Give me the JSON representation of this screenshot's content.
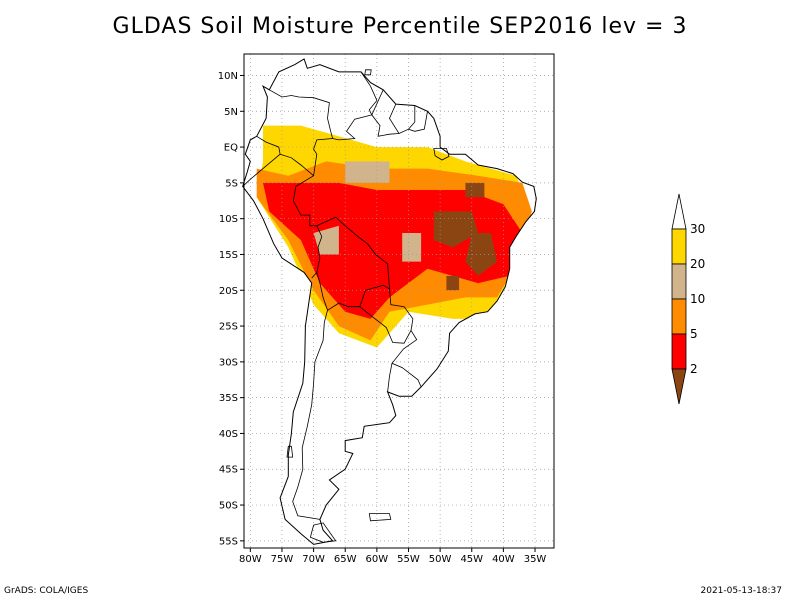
{
  "title": "GLDAS Soil Moisture Percentile SEP2016 lev = 3",
  "footer": {
    "left": "GrADS: COLA/IGES",
    "right": "2021-05-13-18:37"
  },
  "map": {
    "lat_range": [
      -56,
      13
    ],
    "lon_range": [
      -81,
      -32
    ],
    "lat_ticks": [
      {
        "v": 10,
        "label": "10N"
      },
      {
        "v": 5,
        "label": "5N"
      },
      {
        "v": 0,
        "label": "EQ"
      },
      {
        "v": -5,
        "label": "5S"
      },
      {
        "v": -10,
        "label": "10S"
      },
      {
        "v": -15,
        "label": "15S"
      },
      {
        "v": -20,
        "label": "20S"
      },
      {
        "v": -25,
        "label": "25S"
      },
      {
        "v": -30,
        "label": "30S"
      },
      {
        "v": -35,
        "label": "35S"
      },
      {
        "v": -40,
        "label": "40S"
      },
      {
        "v": -45,
        "label": "45S"
      },
      {
        "v": -50,
        "label": "50S"
      },
      {
        "v": -55,
        "label": "55S"
      }
    ],
    "lon_ticks": [
      {
        "v": -80,
        "label": "80W"
      },
      {
        "v": -75,
        "label": "75W"
      },
      {
        "v": -70,
        "label": "70W"
      },
      {
        "v": -65,
        "label": "65W"
      },
      {
        "v": -60,
        "label": "60W"
      },
      {
        "v": -55,
        "label": "55W"
      },
      {
        "v": -50,
        "label": "50W"
      },
      {
        "v": -45,
        "label": "45W"
      },
      {
        "v": -40,
        "label": "40W"
      },
      {
        "v": -35,
        "label": "35W"
      }
    ],
    "grid": true,
    "coastline": [
      [
        -78,
        8.5
      ],
      [
        -77,
        8
      ],
      [
        -75.5,
        10.5
      ],
      [
        -73,
        11.5
      ],
      [
        -71.5,
        12.3
      ],
      [
        -71,
        11
      ],
      [
        -69,
        11.5
      ],
      [
        -66,
        10.5
      ],
      [
        -62.5,
        10.5
      ],
      [
        -61,
        9
      ],
      [
        -59,
        8
      ],
      [
        -57,
        6
      ],
      [
        -54,
        5.8
      ],
      [
        -52,
        5
      ],
      [
        -51,
        4
      ],
      [
        -50,
        1.5
      ],
      [
        -50,
        0
      ],
      [
        -48.5,
        -1
      ],
      [
        -46,
        -1
      ],
      [
        -44,
        -2.5
      ],
      [
        -41,
        -3
      ],
      [
        -38.5,
        -3.7
      ],
      [
        -37,
        -4.9
      ],
      [
        -35.2,
        -5.5
      ],
      [
        -34.8,
        -7.2
      ],
      [
        -35.1,
        -9
      ],
      [
        -36.5,
        -10.5
      ],
      [
        -38,
        -12.5
      ],
      [
        -39,
        -14
      ],
      [
        -39,
        -17
      ],
      [
        -39.7,
        -19.5
      ],
      [
        -41,
        -21.5
      ],
      [
        -42.5,
        -23
      ],
      [
        -44.5,
        -23.3
      ],
      [
        -47,
        -24.5
      ],
      [
        -48.5,
        -26
      ],
      [
        -48.7,
        -28.5
      ],
      [
        -50.5,
        -31
      ],
      [
        -53,
        -33.5
      ],
      [
        -54.5,
        -34.8
      ],
      [
        -56.5,
        -34.8
      ],
      [
        -58.3,
        -34.2
      ],
      [
        -57.5,
        -36
      ],
      [
        -57,
        -37.5
      ],
      [
        -58,
        -38.5
      ],
      [
        -62,
        -39
      ],
      [
        -62.3,
        -40.6
      ],
      [
        -65,
        -41
      ],
      [
        -65,
        -42.5
      ],
      [
        -63.8,
        -42.8
      ],
      [
        -65,
        -45
      ],
      [
        -67.5,
        -46.5
      ],
      [
        -66,
        -47.8
      ],
      [
        -68,
        -50
      ],
      [
        -69,
        -52
      ],
      [
        -68.5,
        -53.5
      ],
      [
        -67,
        -55
      ],
      [
        -70,
        -55.5
      ],
      [
        -72,
        -54
      ],
      [
        -74.5,
        -52
      ],
      [
        -75.3,
        -49
      ],
      [
        -74,
        -46
      ],
      [
        -74,
        -43
      ],
      [
        -73.5,
        -40
      ],
      [
        -73.2,
        -37
      ],
      [
        -71.7,
        -33
      ],
      [
        -71.4,
        -30
      ],
      [
        -71.3,
        -25
      ],
      [
        -70.3,
        -19
      ],
      [
        -71.5,
        -17.5
      ],
      [
        -75,
        -15.5
      ],
      [
        -76.3,
        -13.5
      ],
      [
        -78,
        -10
      ],
      [
        -79.5,
        -7.5
      ],
      [
        -81.2,
        -5.5
      ],
      [
        -80.5,
        -3.5
      ],
      [
        -80,
        -2
      ],
      [
        -80.8,
        -1
      ],
      [
        -80,
        1
      ],
      [
        -79,
        1.5
      ],
      [
        -77.5,
        4
      ],
      [
        -77.3,
        7
      ],
      [
        -78,
        8.5
      ]
    ],
    "borders": [
      [
        [
          -77,
          8
        ],
        [
          -75,
          7
        ],
        [
          -73.5,
          7.2
        ],
        [
          -72.3,
          7
        ],
        [
          -70,
          6.9
        ],
        [
          -67.5,
          6.2
        ],
        [
          -67.8,
          4
        ],
        [
          -67.3,
          2.2
        ],
        [
          -67,
          1.2
        ],
        [
          -69.5,
          1
        ],
        [
          -70,
          -0.3
        ],
        [
          -69.5,
          -1
        ],
        [
          -70,
          -4
        ]
      ],
      [
        [
          -62.5,
          10.5
        ],
        [
          -61,
          8.5
        ],
        [
          -60,
          6.5
        ],
        [
          -61.2,
          5.2
        ],
        [
          -60.8,
          4.5
        ],
        [
          -63.5,
          3.9
        ],
        [
          -64.8,
          2.2
        ],
        [
          -63.5,
          1.2
        ],
        [
          -66,
          1
        ],
        [
          -67,
          1.2
        ]
      ],
      [
        [
          -59,
          8
        ],
        [
          -60.8,
          4.5
        ],
        [
          -59.5,
          3
        ],
        [
          -59.8,
          1.5
        ],
        [
          -58,
          1.8
        ],
        [
          -56.5,
          1.9
        ]
      ],
      [
        [
          -57,
          6
        ],
        [
          -58,
          4
        ],
        [
          -56.5,
          1.9
        ],
        [
          -55,
          2.5
        ],
        [
          -54,
          3.5
        ],
        [
          -54,
          5.8
        ]
      ],
      [
        [
          -52,
          5
        ],
        [
          -52.5,
          2.5
        ],
        [
          -54,
          2.2
        ],
        [
          -55,
          2.5
        ]
      ],
      [
        [
          -79,
          1.5
        ],
        [
          -77.5,
          0.7
        ],
        [
          -75.5,
          0
        ],
        [
          -75.3,
          -1
        ],
        [
          -78,
          -3
        ],
        [
          -80,
          -4.5
        ],
        [
          -81.2,
          -5.5
        ]
      ],
      [
        [
          -75.3,
          -1
        ],
        [
          -73.5,
          -1.5
        ],
        [
          -72,
          -2.5
        ],
        [
          -70,
          -4
        ],
        [
          -72.8,
          -5.5
        ],
        [
          -73.2,
          -7.5
        ],
        [
          -72,
          -9.5
        ],
        [
          -70.6,
          -9.5
        ],
        [
          -70.6,
          -11
        ],
        [
          -69.5,
          -11
        ],
        [
          -68.7,
          -12.5
        ],
        [
          -69.3,
          -14
        ],
        [
          -69,
          -15.5
        ],
        [
          -69.5,
          -17.5
        ],
        [
          -70.3,
          -18.3
        ]
      ],
      [
        [
          -69.5,
          -11
        ],
        [
          -66.5,
          -9.8
        ],
        [
          -65,
          -11
        ],
        [
          -63,
          -12.5
        ],
        [
          -61.5,
          -13.5
        ],
        [
          -60.2,
          -15
        ],
        [
          -58.3,
          -16.3
        ],
        [
          -58,
          -19.8
        ],
        [
          -59,
          -19.3
        ],
        [
          -61.8,
          -20
        ],
        [
          -62.7,
          -22.3
        ],
        [
          -64.5,
          -22.3
        ],
        [
          -66,
          -21.8
        ],
        [
          -67.8,
          -22.8
        ],
        [
          -68.5,
          -21
        ],
        [
          -69,
          -19
        ],
        [
          -69.5,
          -17.5
        ]
      ],
      [
        [
          -62.7,
          -22.3
        ],
        [
          -61,
          -23.5
        ],
        [
          -58.5,
          -25.2
        ],
        [
          -57.5,
          -27.3
        ],
        [
          -55.7,
          -27.4
        ],
        [
          -54.6,
          -25.6
        ]
      ],
      [
        [
          -58,
          -19.8
        ],
        [
          -57.8,
          -22
        ],
        [
          -55.7,
          -22.3
        ],
        [
          -54.3,
          -24
        ],
        [
          -54.6,
          -25.6
        ],
        [
          -53.7,
          -26.9
        ],
        [
          -55.8,
          -28.2
        ],
        [
          -57.6,
          -30.2
        ],
        [
          -56,
          -30.8
        ],
        [
          -53.5,
          -32.5
        ],
        [
          -53,
          -33.5
        ]
      ],
      [
        [
          -58.3,
          -34.2
        ],
        [
          -58,
          -32
        ],
        [
          -57.6,
          -30.2
        ]
      ],
      [
        [
          -67.8,
          -22.8
        ],
        [
          -68.3,
          -24.5
        ],
        [
          -68.5,
          -27
        ],
        [
          -69.8,
          -30
        ],
        [
          -70,
          -33
        ],
        [
          -70.3,
          -36
        ],
        [
          -71,
          -39
        ],
        [
          -71.8,
          -42
        ],
        [
          -71.7,
          -45
        ],
        [
          -72.5,
          -47.5
        ],
        [
          -73.3,
          -49.5
        ],
        [
          -72.5,
          -51.5
        ],
        [
          -69,
          -52
        ]
      ]
    ],
    "islands": [
      [
        [
          -61.8,
          10.8
        ],
        [
          -60.9,
          10.8
        ],
        [
          -61,
          10.1
        ],
        [
          -61.9,
          10.1
        ]
      ],
      [
        [
          -51,
          -0.2
        ],
        [
          -49,
          -0.2
        ],
        [
          -48.6,
          -1.3
        ],
        [
          -49.7,
          -1.8
        ],
        [
          -50.8,
          -1.2
        ]
      ],
      [
        [
          -74,
          -41.8
        ],
        [
          -73.5,
          -41.8
        ],
        [
          -73.3,
          -43.3
        ],
        [
          -74.2,
          -43.3
        ]
      ],
      [
        [
          -70,
          -52.8
        ],
        [
          -68.5,
          -52.5
        ],
        [
          -66.5,
          -55
        ],
        [
          -68.5,
          -55.2
        ],
        [
          -70.5,
          -54.5
        ]
      ],
      [
        [
          -61.2,
          -51.2
        ],
        [
          -58,
          -51.2
        ],
        [
          -57.8,
          -52
        ],
        [
          -61,
          -52.2
        ]
      ]
    ]
  },
  "colorbar": {
    "levels": [
      "2",
      "5",
      "10",
      "20",
      "30"
    ],
    "colors": [
      "#8b4513",
      "#ff0000",
      "#ff8c00",
      "#d2b48c",
      "#ffd700",
      "#ffffff"
    ]
  },
  "legend_classes": [
    {
      "color": "#8b4513",
      "range": "<2"
    },
    {
      "color": "#ff0000",
      "range": "2-5"
    },
    {
      "color": "#ff8c00",
      "range": "5-10"
    },
    {
      "color": "#d2b48c",
      "range": "10-20"
    },
    {
      "color": "#ffd700",
      "range": "20-30"
    },
    {
      "color": "#ffffff",
      "range": ">30"
    }
  ],
  "shading_regions": [
    {
      "cls": 4,
      "poly": [
        [
          -78,
          3
        ],
        [
          -72,
          3
        ],
        [
          -68,
          2
        ],
        [
          -60,
          0
        ],
        [
          -52,
          0
        ],
        [
          -46,
          -2
        ],
        [
          -38,
          -4
        ],
        [
          -36,
          -8
        ],
        [
          -38,
          -14
        ],
        [
          -39,
          -20
        ],
        [
          -42,
          -24
        ],
        [
          -48,
          -24
        ],
        [
          -55,
          -23
        ],
        [
          -60,
          -28
        ],
        [
          -66,
          -26
        ],
        [
          -70,
          -22
        ],
        [
          -74,
          -14
        ],
        [
          -79,
          -7
        ],
        [
          -78,
          -2
        ]
      ]
    },
    {
      "cls": 2,
      "poly": [
        [
          -79,
          -3
        ],
        [
          -74,
          -4
        ],
        [
          -68,
          -2
        ],
        [
          -60,
          -3
        ],
        [
          -52,
          -3
        ],
        [
          -44,
          -4
        ],
        [
          -37,
          -5
        ],
        [
          -35.5,
          -9
        ],
        [
          -37,
          -13
        ],
        [
          -39,
          -18
        ],
        [
          -41,
          -21
        ],
        [
          -46,
          -21
        ],
        [
          -52,
          -22
        ],
        [
          -58,
          -23
        ],
        [
          -61,
          -27
        ],
        [
          -66,
          -25
        ],
        [
          -70,
          -20
        ],
        [
          -74,
          -13
        ],
        [
          -79,
          -7
        ]
      ]
    },
    {
      "cls": 1,
      "poly": [
        [
          -78,
          -5
        ],
        [
          -72,
          -5
        ],
        [
          -66,
          -5
        ],
        [
          -60,
          -6
        ],
        [
          -52,
          -6
        ],
        [
          -46,
          -6
        ],
        [
          -40,
          -8
        ],
        [
          -37,
          -12
        ],
        [
          -39,
          -18
        ],
        [
          -44,
          -19
        ],
        [
          -52,
          -17
        ],
        [
          -58,
          -21
        ],
        [
          -61,
          -24
        ],
        [
          -65,
          -23
        ],
        [
          -69,
          -19
        ],
        [
          -72,
          -13
        ],
        [
          -77,
          -9
        ]
      ]
    },
    {
      "cls": 3,
      "poly": [
        [
          -70,
          -12
        ],
        [
          -66,
          -11
        ],
        [
          -66,
          -15
        ],
        [
          -69,
          -15
        ]
      ]
    },
    {
      "cls": 3,
      "poly": [
        [
          -56,
          -12
        ],
        [
          -53,
          -12
        ],
        [
          -53,
          -16
        ],
        [
          -56,
          -16
        ]
      ]
    },
    {
      "cls": 3,
      "poly": [
        [
          -65,
          -2
        ],
        [
          -58,
          -2
        ],
        [
          -58,
          -5
        ],
        [
          -65,
          -5
        ]
      ]
    },
    {
      "cls": 0,
      "poly": [
        [
          -51,
          -9
        ],
        [
          -45,
          -9
        ],
        [
          -44,
          -12
        ],
        [
          -48,
          -14
        ],
        [
          -51,
          -13
        ]
      ]
    },
    {
      "cls": 0,
      "poly": [
        [
          -45,
          -12
        ],
        [
          -42,
          -12
        ],
        [
          -41,
          -16
        ],
        [
          -44,
          -18
        ],
        [
          -46,
          -16
        ]
      ]
    },
    {
      "cls": 0,
      "poly": [
        [
          -46,
          -5
        ],
        [
          -43,
          -5
        ],
        [
          -43,
          -7
        ],
        [
          -46,
          -7
        ]
      ]
    },
    {
      "cls": 0,
      "poly": [
        [
          -49,
          -18
        ],
        [
          -47,
          -18
        ],
        [
          -47,
          -20
        ],
        [
          -49,
          -20
        ]
      ]
    }
  ]
}
